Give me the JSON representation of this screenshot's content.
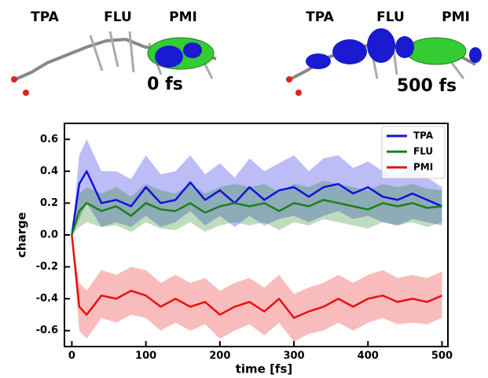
{
  "panels": [
    {
      "labels": [
        "TPA",
        "FLU",
        "PMI"
      ],
      "time": "0 fs"
    },
    {
      "labels": [
        "TPA",
        "FLU",
        "PMI"
      ],
      "time": "500 fs"
    }
  ],
  "chart_data": {
    "type": "line",
    "xlabel": "time [fs]",
    "ylabel": "charge",
    "x": [
      0,
      10,
      20,
      40,
      60,
      80,
      100,
      120,
      140,
      160,
      180,
      200,
      220,
      240,
      260,
      280,
      300,
      320,
      340,
      360,
      380,
      400,
      420,
      440,
      460,
      480,
      500
    ],
    "series": [
      {
        "name": "TPA",
        "color": "#1010e0",
        "values": [
          0,
          0.32,
          0.4,
          0.2,
          0.22,
          0.18,
          0.3,
          0.2,
          0.22,
          0.33,
          0.22,
          0.28,
          0.2,
          0.3,
          0.22,
          0.28,
          0.3,
          0.24,
          0.3,
          0.32,
          0.26,
          0.3,
          0.24,
          0.22,
          0.26,
          0.22,
          0.18
        ],
        "lower": [
          0,
          0.1,
          0.2,
          0.05,
          0.08,
          0.05,
          0.12,
          0.05,
          0.08,
          0.15,
          0.06,
          0.12,
          0.05,
          0.12,
          0.06,
          0.1,
          0.12,
          0.08,
          0.12,
          0.15,
          0.1,
          0.12,
          0.08,
          0.06,
          0.1,
          0.08,
          0.06
        ],
        "upper": [
          0,
          0.5,
          0.6,
          0.4,
          0.4,
          0.35,
          0.5,
          0.38,
          0.4,
          0.5,
          0.38,
          0.45,
          0.36,
          0.48,
          0.4,
          0.45,
          0.5,
          0.4,
          0.48,
          0.5,
          0.42,
          0.46,
          0.4,
          0.38,
          0.42,
          0.36,
          0.3
        ]
      },
      {
        "name": "FLU",
        "color": "#1a801a",
        "values": [
          0,
          0.15,
          0.2,
          0.15,
          0.18,
          0.12,
          0.2,
          0.16,
          0.15,
          0.2,
          0.14,
          0.18,
          0.2,
          0.18,
          0.2,
          0.15,
          0.2,
          0.18,
          0.22,
          0.2,
          0.18,
          0.16,
          0.2,
          0.18,
          0.2,
          0.17,
          0.18
        ],
        "lower": [
          0,
          0.05,
          0.08,
          0.05,
          0.06,
          0.02,
          0.08,
          0.04,
          0.03,
          0.08,
          0.02,
          0.06,
          0.08,
          0.06,
          0.08,
          0.03,
          0.08,
          0.06,
          0.1,
          0.08,
          0.06,
          0.04,
          0.08,
          0.06,
          0.08,
          0.05,
          0.08
        ],
        "upper": [
          0,
          0.26,
          0.3,
          0.26,
          0.3,
          0.24,
          0.32,
          0.28,
          0.26,
          0.32,
          0.26,
          0.3,
          0.32,
          0.3,
          0.32,
          0.27,
          0.32,
          0.3,
          0.34,
          0.32,
          0.3,
          0.28,
          0.32,
          0.3,
          0.32,
          0.29,
          0.28
        ]
      },
      {
        "name": "PMI",
        "color": "#e81010",
        "values": [
          0,
          -0.45,
          -0.5,
          -0.38,
          -0.4,
          -0.35,
          -0.38,
          -0.45,
          -0.4,
          -0.45,
          -0.42,
          -0.5,
          -0.45,
          -0.42,
          -0.48,
          -0.4,
          -0.52,
          -0.48,
          -0.45,
          -0.4,
          -0.45,
          -0.4,
          -0.38,
          -0.42,
          -0.4,
          -0.42,
          -0.38
        ],
        "lower": [
          0,
          -0.6,
          -0.65,
          -0.52,
          -0.55,
          -0.5,
          -0.52,
          -0.6,
          -0.55,
          -0.6,
          -0.56,
          -0.65,
          -0.6,
          -0.56,
          -0.63,
          -0.55,
          -0.67,
          -0.62,
          -0.6,
          -0.55,
          -0.6,
          -0.55,
          -0.52,
          -0.56,
          -0.55,
          -0.56,
          -0.52
        ],
        "upper": [
          0,
          -0.3,
          -0.35,
          -0.22,
          -0.25,
          -0.2,
          -0.22,
          -0.3,
          -0.25,
          -0.3,
          -0.27,
          -0.35,
          -0.3,
          -0.27,
          -0.33,
          -0.25,
          -0.37,
          -0.33,
          -0.3,
          -0.25,
          -0.3,
          -0.25,
          -0.22,
          -0.27,
          -0.25,
          -0.27,
          -0.23
        ]
      }
    ],
    "xlim": [
      -10,
      508
    ],
    "ylim": [
      -0.7,
      0.7
    ],
    "xticks": [
      0,
      100,
      200,
      300,
      400,
      500
    ],
    "yticks": [
      -0.6,
      -0.4,
      -0.2,
      {
        "value": 0,
        "label": "0.0"
      },
      0.2,
      0.4,
      0.6
    ],
    "legend": "upper right"
  }
}
